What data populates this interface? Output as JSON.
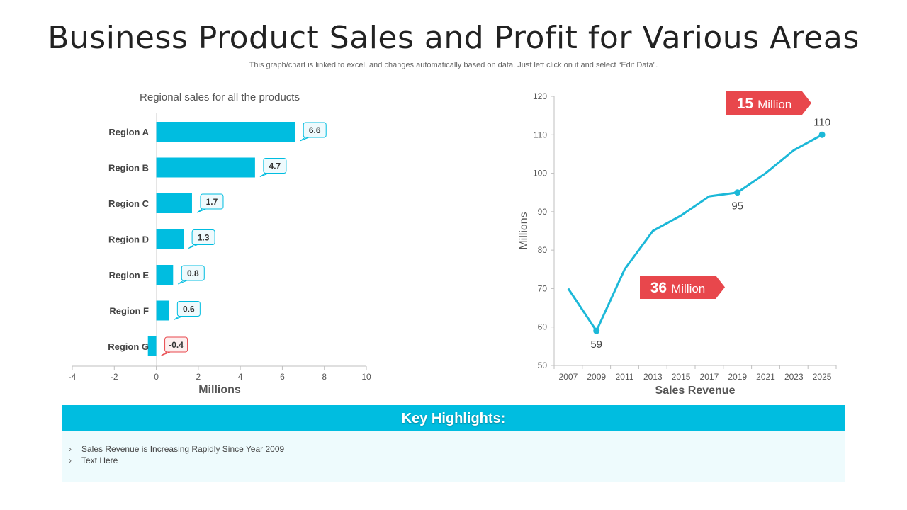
{
  "title": "Business Product Sales and Profit for Various Areas",
  "subtitle": "This graph/chart is linked to excel,  and changes automatically based on data. Just left click on it and select “Edit Data”.",
  "colors": {
    "bar": "#00bde0",
    "line": "#1cb8d8",
    "accent": "#e8474c",
    "negative_label": "#e8474c"
  },
  "chart_data": [
    {
      "type": "bar",
      "orientation": "horizontal",
      "title": "Regional sales for all the products",
      "categories": [
        "Region A",
        "Region B",
        "Region C",
        "Region D",
        "Region E",
        "Region F",
        "Region G"
      ],
      "values": [
        6.6,
        4.7,
        1.7,
        1.3,
        0.8,
        0.6,
        -0.4
      ],
      "data_labels": [
        "6.6",
        "4.7",
        "1.7",
        "1.3",
        "0.8",
        "0.6",
        "-0.4"
      ],
      "xlabel": "Millions",
      "xlim": [
        -4,
        10
      ],
      "xticks": [
        "-4",
        "-2",
        "0",
        "2",
        "4",
        "6",
        "8",
        "10"
      ]
    },
    {
      "type": "line",
      "title": "",
      "xlabel": "Sales Revenue",
      "ylabel": "Millions",
      "ylim": [
        50,
        120
      ],
      "yticks": [
        "50",
        "60",
        "70",
        "80",
        "90",
        "100",
        "110",
        "120"
      ],
      "xticks": [
        "2007",
        "2009",
        "2011",
        "2013",
        "2015",
        "2017",
        "2019",
        "2021",
        "2023",
        "2025"
      ],
      "x": [
        2007,
        2009,
        2011,
        2013,
        2015,
        2017,
        2019,
        2021,
        2023,
        2025
      ],
      "values": [
        70,
        59,
        75,
        85,
        89,
        94,
        95,
        100,
        106,
        110
      ],
      "point_labels": [
        {
          "x": 2009,
          "y": 59,
          "text": "59"
        },
        {
          "x": 2019,
          "y": 95,
          "text": "95"
        },
        {
          "x": 2025,
          "y": 110,
          "text": "110"
        }
      ],
      "callouts": [
        {
          "value": "15",
          "unit": "Million"
        },
        {
          "value": "36",
          "unit": "Million"
        }
      ]
    }
  ],
  "highlights": {
    "header": "Key Highlights:",
    "items": [
      "Sales Revenue  is Increasing Rapidly Since Year 2009",
      "Text Here"
    ]
  }
}
